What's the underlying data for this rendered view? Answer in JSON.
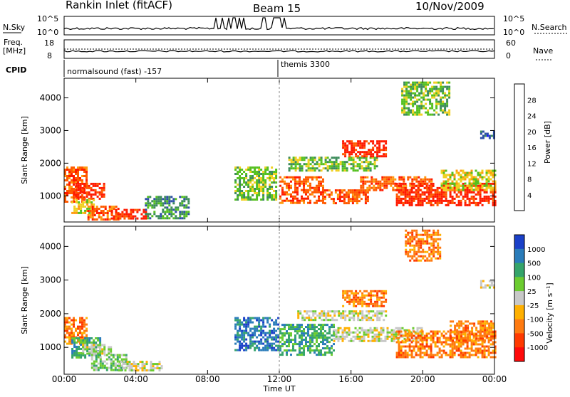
{
  "header": {
    "station": "Rankin Inlet (fitACF)",
    "beam": "Beam 15",
    "date": "10/Nov/2009"
  },
  "noise_panel": {
    "left_label": "N.Sky",
    "left_ticks": [
      "10^5",
      "10^0"
    ],
    "right_ticks": [
      "10^5",
      "10^0"
    ],
    "right_label": "N.Search"
  },
  "freq_panel": {
    "left_label_1": "Freq.",
    "left_label_2": "[MHz]",
    "left_ticks": [
      "18",
      "8"
    ],
    "right_ticks": [
      "60",
      "0"
    ],
    "right_label": "Nave"
  },
  "cpid": {
    "label": "CPID",
    "mode_1": "normalsound (fast) -157",
    "mode_2": "themis 3300"
  },
  "colors": {
    "power_scale": [
      "#1a1aff",
      "#2d4fa8",
      "#3c8c5a",
      "#55c020",
      "#f0d020",
      "#ff9a10",
      "#ff5a00",
      "#ff1a00"
    ],
    "velocity_scale": [
      "#1a40c8",
      "#2a7cba",
      "#35a46a",
      "#6ccc30",
      "#c8c8c8",
      "#ffb000",
      "#ff7a10",
      "#ff3a00",
      "#ff0a0a"
    ]
  },
  "chart_data": [
    {
      "type": "heatmap",
      "name": "power",
      "ylabel": "Slant Range [km]",
      "ylim": [
        200,
        4600
      ],
      "xlim": [
        0,
        24
      ],
      "xticks": [
        "00:00",
        "04:00",
        "08:00",
        "12:00",
        "16:00",
        "20:00",
        "00:00"
      ],
      "yticks": [
        1000,
        2000,
        3000,
        4000
      ],
      "colorbar": {
        "label": "Power [dB]",
        "ticks": [
          "4",
          "8",
          "12",
          "16",
          "20",
          "24",
          "28"
        ]
      },
      "regions": [
        {
          "t0": 0.0,
          "t1": 1.2,
          "r0": 800,
          "r1": 1900,
          "v": 6
        },
        {
          "t0": 0.5,
          "t1": 2.2,
          "r0": 900,
          "r1": 1400,
          "v": 7
        },
        {
          "t0": 0.4,
          "t1": 1.6,
          "r0": 500,
          "r1": 900,
          "v": 4
        },
        {
          "t0": 1.3,
          "t1": 3.0,
          "r0": 300,
          "r1": 700,
          "v": 6
        },
        {
          "t0": 2.6,
          "t1": 4.6,
          "r0": 300,
          "r1": 600,
          "v": 7
        },
        {
          "t0": 4.5,
          "t1": 7.0,
          "r0": 300,
          "r1": 1000,
          "v": 2
        },
        {
          "t0": 9.5,
          "t1": 11.8,
          "r0": 900,
          "r1": 1900,
          "v": 3
        },
        {
          "t0": 12.0,
          "t1": 14.5,
          "r0": 800,
          "r1": 1600,
          "v": 6
        },
        {
          "t0": 14.5,
          "t1": 17.0,
          "r0": 800,
          "r1": 1200,
          "v": 6
        },
        {
          "t0": 12.5,
          "t1": 17.5,
          "r0": 1800,
          "r1": 2200,
          "v": 3
        },
        {
          "t0": 15.5,
          "t1": 18.0,
          "r0": 2200,
          "r1": 2700,
          "v": 7
        },
        {
          "t0": 16.5,
          "t1": 20.5,
          "r0": 1200,
          "r1": 1600,
          "v": 6
        },
        {
          "t0": 18.5,
          "t1": 24.0,
          "r0": 700,
          "r1": 1400,
          "v": 7
        },
        {
          "t0": 21.0,
          "t1": 24.0,
          "r0": 1200,
          "r1": 1800,
          "v": 4
        },
        {
          "t0": 23.2,
          "t1": 24.0,
          "r0": 2800,
          "r1": 3000,
          "v": 1
        },
        {
          "t0": 18.8,
          "t1": 21.5,
          "r0": 3500,
          "r1": 4500,
          "v": 3
        }
      ]
    },
    {
      "type": "heatmap",
      "name": "velocity",
      "ylabel": "Slant Range [km]",
      "xlabel": "Time UT",
      "ylim": [
        200,
        4600
      ],
      "xlim": [
        0,
        24
      ],
      "xticks": [
        "00:00",
        "04:00",
        "08:00",
        "12:00",
        "16:00",
        "20:00",
        "00:00"
      ],
      "yticks": [
        1000,
        2000,
        3000,
        4000
      ],
      "colorbar": {
        "label": "Velocity [m s⁻¹]",
        "ticks": [
          "1000",
          "500",
          "100",
          "25",
          "-25",
          "-100",
          "-500",
          "-1000"
        ]
      },
      "regions": [
        {
          "t0": 0.0,
          "t1": 1.2,
          "r0": 1100,
          "r1": 1900,
          "v": 6
        },
        {
          "t0": 0.4,
          "t1": 2.0,
          "r0": 700,
          "r1": 1300,
          "v": 2
        },
        {
          "t0": 1.0,
          "t1": 2.6,
          "r0": 800,
          "r1": 1100,
          "v": 4
        },
        {
          "t0": 1.5,
          "t1": 3.5,
          "r0": 300,
          "r1": 800,
          "v": 3
        },
        {
          "t0": 3.0,
          "t1": 5.5,
          "r0": 300,
          "r1": 600,
          "v": 4
        },
        {
          "t0": 9.5,
          "t1": 12.0,
          "r0": 900,
          "r1": 1900,
          "v": 1
        },
        {
          "t0": 12.0,
          "t1": 15.0,
          "r0": 800,
          "r1": 1700,
          "v": 2
        },
        {
          "t0": 13.0,
          "t1": 18.0,
          "r0": 1800,
          "r1": 2100,
          "v": 4
        },
        {
          "t0": 15.5,
          "t1": 18.0,
          "r0": 2200,
          "r1": 2700,
          "v": 6
        },
        {
          "t0": 15.0,
          "t1": 20.0,
          "r0": 1200,
          "r1": 1600,
          "v": 4
        },
        {
          "t0": 18.5,
          "t1": 24.0,
          "r0": 700,
          "r1": 1500,
          "v": 6
        },
        {
          "t0": 21.5,
          "t1": 24.0,
          "r0": 1200,
          "r1": 1800,
          "v": 6
        },
        {
          "t0": 23.2,
          "t1": 24.0,
          "r0": 2800,
          "r1": 3000,
          "v": 4
        },
        {
          "t0": 19.0,
          "t1": 21.0,
          "r0": 3600,
          "r1": 4500,
          "v": 6
        }
      ]
    }
  ]
}
